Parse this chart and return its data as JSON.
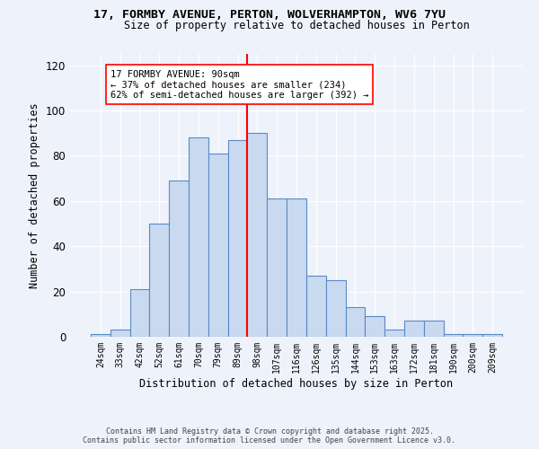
{
  "title1": "17, FORMBY AVENUE, PERTON, WOLVERHAMPTON, WV6 7YU",
  "title2": "Size of property relative to detached houses in Perton",
  "xlabel": "Distribution of detached houses by size in Perton",
  "ylabel": "Number of detached properties",
  "categories": [
    "24sqm",
    "33sqm",
    "42sqm",
    "52sqm",
    "61sqm",
    "70sqm",
    "79sqm",
    "89sqm",
    "98sqm",
    "107sqm",
    "116sqm",
    "126sqm",
    "135sqm",
    "144sqm",
    "153sqm",
    "163sqm",
    "172sqm",
    "181sqm",
    "190sqm",
    "200sqm",
    "209sqm"
  ],
  "values": [
    1,
    3,
    21,
    50,
    69,
    88,
    81,
    87,
    90,
    61,
    61,
    27,
    25,
    13,
    9,
    3,
    7,
    7,
    1,
    1,
    1
  ],
  "bar_color": "#c9d9f0",
  "bar_edge_color": "#5a8ac6",
  "vline_color": "red",
  "annotation_title": "17 FORMBY AVENUE: 90sqm",
  "annotation_line1": "← 37% of detached houses are smaller (234)",
  "annotation_line2": "62% of semi-detached houses are larger (392) →",
  "annotation_box_color": "white",
  "annotation_box_edge": "red",
  "ylim": [
    0,
    125
  ],
  "yticks": [
    0,
    20,
    40,
    60,
    80,
    100,
    120
  ],
  "footer1": "Contains HM Land Registry data © Crown copyright and database right 2025.",
  "footer2": "Contains public sector information licensed under the Open Government Licence v3.0.",
  "background_color": "#eef2fb"
}
